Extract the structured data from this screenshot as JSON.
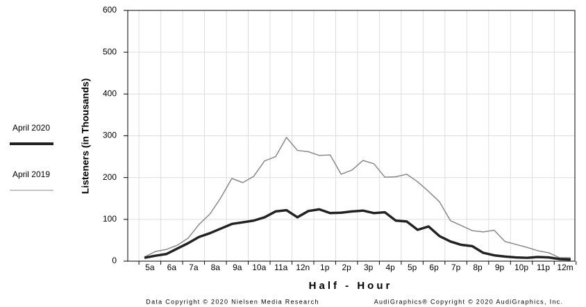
{
  "chart_data": {
    "type": "line",
    "ylabel": "Listeners (in Thousands)",
    "xlabel": "Half - Hour",
    "footer": [
      "Data Copyright © 2020 Nielsen Media Research",
      "AudiGraphics® Copyright © 2020 AudiGraphics, Inc."
    ],
    "categories": [
      "5a",
      null,
      "6a",
      null,
      "7a",
      null,
      "8a",
      null,
      "9a",
      null,
      "10a",
      null,
      "11a",
      null,
      "12n",
      null,
      "1p",
      null,
      "2p",
      null,
      "3p",
      null,
      "4p",
      null,
      "5p",
      null,
      "6p",
      null,
      "7p",
      null,
      "8p",
      null,
      "9p",
      null,
      "10p",
      null,
      "11p",
      null,
      "12m",
      null
    ],
    "series": [
      {
        "name": "April 2020",
        "color": "#222222",
        "width": 3.5,
        "values": [
          8,
          13,
          17,
          30,
          43,
          58,
          67,
          78,
          89,
          93,
          97,
          105,
          119,
          122,
          105,
          120,
          124,
          115,
          116,
          119,
          121,
          115,
          117,
          97,
          95,
          75,
          83,
          60,
          47,
          39,
          36,
          20,
          14,
          11,
          9,
          8,
          10,
          9,
          5,
          4
        ]
      },
      {
        "name": "April 2019",
        "color": "#888888",
        "width": 1.5,
        "values": [
          10,
          23,
          28,
          38,
          55,
          88,
          113,
          152,
          198,
          188,
          203,
          240,
          250,
          296,
          265,
          262,
          253,
          254,
          208,
          218,
          241,
          233,
          201,
          202,
          208,
          190,
          167,
          142,
          97,
          85,
          73,
          70,
          74,
          47,
          40,
          33,
          25,
          20,
          8,
          8
        ]
      }
    ],
    "ylim": [
      0,
      600
    ],
    "yticks": [
      0,
      100,
      200,
      300,
      400,
      500,
      600
    ],
    "grid": true
  }
}
